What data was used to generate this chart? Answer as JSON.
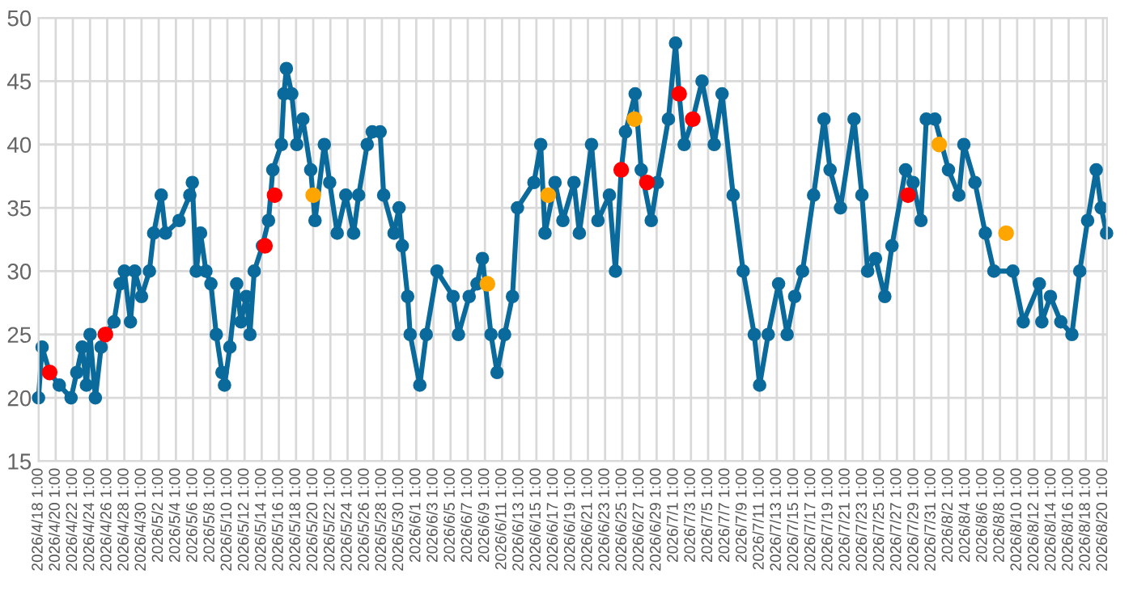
{
  "chart_data": {
    "type": "line",
    "series": [
      {
        "color": "#0b6a9c",
        "marker": "circle",
        "line_style": "solid",
        "x": [
          "2026-04-18T01:00",
          "2026-04-18T11:00",
          "2026-04-19T08:00",
          "2026-04-20T11:00",
          "2026-04-21T20:00",
          "2026-04-22T12:00",
          "2026-04-23T03:00",
          "2026-04-23T15:00",
          "2026-04-24T01:00",
          "2026-04-24T16:00",
          "2026-04-25T08:00",
          "2026-04-25T20:00",
          "2026-04-26T20:00",
          "2026-04-27T13:00",
          "2026-04-28T01:00",
          "2026-04-28T18:00",
          "2026-04-29T06:00",
          "2026-04-30T01:00",
          "2026-04-30T23:00",
          "2026-05-01T11:00",
          "2026-05-02T08:00",
          "2026-05-02T20:00",
          "2026-05-04T10:00",
          "2026-05-05T16:00",
          "2026-05-05T23:00",
          "2026-05-06T10:00",
          "2026-05-06T22:00",
          "2026-05-07T13:00",
          "2026-05-08T03:00",
          "2026-05-08T18:00",
          "2026-05-09T10:00",
          "2026-05-09T17:00",
          "2026-05-10T08:00",
          "2026-05-11T03:00",
          "2026-05-11T15:00",
          "2026-05-12T06:00",
          "2026-05-12T16:00",
          "2026-05-13T04:00",
          "2026-05-14T03:00",
          "2026-05-14T20:00",
          "2026-05-15T08:00",
          "2026-05-16T08:00",
          "2026-05-16T15:00",
          "2026-05-16T22:00",
          "2026-05-17T13:00",
          "2026-05-18T03:00",
          "2026-05-18T20:00",
          "2026-05-19T18:00",
          "2026-05-20T06:00",
          "2026-05-21T08:00",
          "2026-05-21T23:00",
          "2026-05-22T20:00",
          "2026-05-23T20:00",
          "2026-05-24T18:00",
          "2026-05-25T08:00",
          "2026-05-26T08:00",
          "2026-05-26T22:00",
          "2026-05-27T20:00",
          "2026-05-28T06:00",
          "2026-05-29T11:00",
          "2026-05-30T01:00",
          "2026-05-30T10:00",
          "2026-05-31T01:00",
          "2026-05-31T08:00",
          "2026-06-01T11:00",
          "2026-06-02T05:00",
          "2026-06-03T11:00",
          "2026-06-05T08:00",
          "2026-06-05T23:00",
          "2026-06-07T05:00",
          "2026-06-08T03:00",
          "2026-06-08T18:00",
          "2026-06-09T18:00",
          "2026-06-10T11:00",
          "2026-06-11T08:00",
          "2026-06-12T06:00",
          "2026-06-12T20:00",
          "2026-06-14T18:00",
          "2026-06-15T13:00",
          "2026-06-16T01:00",
          "2026-06-17T05:00",
          "2026-06-18T03:00",
          "2026-06-19T10:00",
          "2026-06-20T01:00",
          "2026-06-21T11:00",
          "2026-06-22T05:00",
          "2026-06-23T13:00",
          "2026-06-24T06:00",
          "2026-06-24T22:00",
          "2026-06-25T10:00",
          "2026-06-26T13:00",
          "2026-06-27T06:00",
          "2026-06-28T10:00",
          "2026-06-29T03:00",
          "2026-06-30T10:00",
          "2026-07-01T06:00",
          "2026-07-01T16:00",
          "2026-07-02T06:00",
          "2026-07-03T06:00",
          "2026-07-04T08:00",
          "2026-07-05T18:00",
          "2026-07-06T16:00",
          "2026-07-07T23:00",
          "2026-07-09T03:00",
          "2026-07-10T10:00",
          "2026-07-11T01:00",
          "2026-07-12T01:00",
          "2026-07-13T06:00",
          "2026-07-14T06:00",
          "2026-07-15T03:00",
          "2026-07-16T01:00",
          "2026-07-17T08:00",
          "2026-07-18T13:00",
          "2026-07-19T06:00",
          "2026-07-20T11:00",
          "2026-07-22T01:00",
          "2026-07-22T23:00",
          "2026-07-23T15:00",
          "2026-07-24T13:00",
          "2026-07-25T15:00",
          "2026-07-26T11:00",
          "2026-07-28T01:00",
          "2026-07-28T22:00",
          "2026-07-29T20:00",
          "2026-07-30T11:00",
          "2026-07-31T11:00",
          "2026-08-02T01:00",
          "2026-08-03T06:00",
          "2026-08-03T20:00",
          "2026-08-05T03:00",
          "2026-08-06T08:00",
          "2026-08-07T08:00",
          "2026-08-09T13:00",
          "2026-08-10T18:00",
          "2026-08-12T15:00",
          "2026-08-12T22:00",
          "2026-08-13T22:00",
          "2026-08-15T03:00",
          "2026-08-16T10:00",
          "2026-08-17T08:00",
          "2026-08-18T06:00",
          "2026-08-19T06:00",
          "2026-08-19T20:00",
          "2026-08-20T11:00"
        ],
        "values": [
          20,
          24,
          22,
          21,
          20,
          22,
          24,
          21,
          25,
          20,
          24,
          25,
          26,
          29,
          30,
          26,
          30,
          28,
          30,
          33,
          36,
          33,
          34,
          36,
          37,
          30,
          33,
          30,
          29,
          25,
          22,
          21,
          24,
          29,
          26,
          28,
          25,
          30,
          32,
          34,
          38,
          40,
          44,
          46,
          44,
          40,
          42,
          38,
          34,
          40,
          37,
          33,
          36,
          33,
          36,
          40,
          41,
          41,
          36,
          33,
          35,
          32,
          28,
          25,
          21,
          25,
          30,
          28,
          25,
          28,
          29,
          31,
          25,
          22,
          25,
          28,
          35,
          37,
          40,
          33,
          37,
          34,
          37,
          33,
          40,
          34,
          36,
          30,
          38,
          41,
          44,
          38,
          34,
          37,
          42,
          48,
          44,
          40,
          42,
          45,
          40,
          44,
          36,
          30,
          25,
          21,
          25,
          29,
          25,
          28,
          30,
          36,
          42,
          38,
          35,
          42,
          36,
          30,
          31,
          28,
          32,
          38,
          37,
          34,
          42,
          42,
          38,
          36,
          40,
          37,
          33,
          30,
          30,
          26,
          29,
          26,
          28,
          26,
          25,
          30,
          34,
          38,
          35,
          33
        ]
      },
      {
        "type": "scatter",
        "color": "#ff0000",
        "marker": "circle",
        "x": [
          "2026-04-19T08:00",
          "2026-04-25T20:00",
          "2026-05-14T10:00",
          "2026-05-15T13:00",
          "2026-06-24T22:00",
          "2026-06-27T22:00",
          "2026-07-01T16:00",
          "2026-07-03T06:00",
          "2026-07-28T08:00"
        ],
        "values": [
          22,
          25,
          32,
          36,
          38,
          37,
          44,
          42,
          36
        ]
      },
      {
        "type": "scatter",
        "color": "#ffa500",
        "marker": "circle",
        "x": [
          "2026-05-20T01:00",
          "2026-06-09T08:00",
          "2026-06-16T10:00",
          "2026-06-26T11:00",
          "2026-07-31T23:00",
          "2026-08-08T18:00"
        ],
        "values": [
          36,
          29,
          36,
          42,
          40,
          33
        ]
      }
    ],
    "xlim": [
      "2026-04-18T01:00",
      "2026-08-20T12:00"
    ],
    "xticks": [
      {
        "value": "2026-04-18T01:00",
        "label": "2026/4/18 1:00"
      },
      {
        "value": "2026-04-20T01:00",
        "label": "2026/4/20 1:00"
      },
      {
        "value": "2026-04-22T01:00",
        "label": "2026/4/22 1:00"
      },
      {
        "value": "2026-04-24T01:00",
        "label": "2026/4/24 1:00"
      },
      {
        "value": "2026-04-26T01:00",
        "label": "2026/4/26 1:00"
      },
      {
        "value": "2026-04-28T01:00",
        "label": "2026/4/28 1:00"
      },
      {
        "value": "2026-04-30T01:00",
        "label": "2026/4/30 1:00"
      },
      {
        "value": "2026-05-02T01:00",
        "label": "2026/5/2 1:00"
      },
      {
        "value": "2026-05-04T01:00",
        "label": "2026/5/4 1:00"
      },
      {
        "value": "2026-05-06T01:00",
        "label": "2026/5/6 1:00"
      },
      {
        "value": "2026-05-08T01:00",
        "label": "2026/5/8 1:00"
      },
      {
        "value": "2026-05-10T01:00",
        "label": "2026/5/10 1:00"
      },
      {
        "value": "2026-05-12T01:00",
        "label": "2026/5/12 1:00"
      },
      {
        "value": "2026-05-14T01:00",
        "label": "2026/5/14 1:00"
      },
      {
        "value": "2026-05-16T01:00",
        "label": "2026/5/16 1:00"
      },
      {
        "value": "2026-05-18T01:00",
        "label": "2026/5/18 1:00"
      },
      {
        "value": "2026-05-20T01:00",
        "label": "2026/5/20 1:00"
      },
      {
        "value": "2026-05-22T01:00",
        "label": "2026/5/22 1:00"
      },
      {
        "value": "2026-05-24T01:00",
        "label": "2026/5/24 1:00"
      },
      {
        "value": "2026-05-26T01:00",
        "label": "2026/5/26 1:00"
      },
      {
        "value": "2026-05-28T01:00",
        "label": "2026/5/28 1:00"
      },
      {
        "value": "2026-05-30T01:00",
        "label": "2026/5/30 1:00"
      },
      {
        "value": "2026-06-01T01:00",
        "label": "2026/6/1 1:00"
      },
      {
        "value": "2026-06-03T01:00",
        "label": "2026/6/3 1:00"
      },
      {
        "value": "2026-06-05T01:00",
        "label": "2026/6/5 1:00"
      },
      {
        "value": "2026-06-07T01:00",
        "label": "2026/6/7 1:00"
      },
      {
        "value": "2026-06-09T01:00",
        "label": "2026/6/9 1:00"
      },
      {
        "value": "2026-06-11T01:00",
        "label": "2026/6/11 1:00"
      },
      {
        "value": "2026-06-13T01:00",
        "label": "2026/6/13 1:00"
      },
      {
        "value": "2026-06-15T01:00",
        "label": "2026/6/15 1:00"
      },
      {
        "value": "2026-06-17T01:00",
        "label": "2026/6/17 1:00"
      },
      {
        "value": "2026-06-19T01:00",
        "label": "2026/6/19 1:00"
      },
      {
        "value": "2026-06-21T01:00",
        "label": "2026/6/21 1:00"
      },
      {
        "value": "2026-06-23T01:00",
        "label": "2026/6/23 1:00"
      },
      {
        "value": "2026-06-25T01:00",
        "label": "2026/6/25 1:00"
      },
      {
        "value": "2026-06-27T01:00",
        "label": "2026/6/27 1:00"
      },
      {
        "value": "2026-06-29T01:00",
        "label": "2026/6/29 1:00"
      },
      {
        "value": "2026-07-01T01:00",
        "label": "2026/7/1 1:00"
      },
      {
        "value": "2026-07-03T01:00",
        "label": "2026/7/3 1:00"
      },
      {
        "value": "2026-07-05T01:00",
        "label": "2026/7/5 1:00"
      },
      {
        "value": "2026-07-07T01:00",
        "label": "2026/7/7 1:00"
      },
      {
        "value": "2026-07-09T01:00",
        "label": "2026/7/9 1:00"
      },
      {
        "value": "2026-07-11T01:00",
        "label": "2026/7/11 1:00"
      },
      {
        "value": "2026-07-13T01:00",
        "label": "2026/7/13 1:00"
      },
      {
        "value": "2026-07-15T01:00",
        "label": "2026/7/15 1:00"
      },
      {
        "value": "2026-07-17T01:00",
        "label": "2026/7/17 1:00"
      },
      {
        "value": "2026-07-19T01:00",
        "label": "2026/7/19 1:00"
      },
      {
        "value": "2026-07-21T01:00",
        "label": "2026/7/21 1:00"
      },
      {
        "value": "2026-07-23T01:00",
        "label": "2026/7/23 1:00"
      },
      {
        "value": "2026-07-25T01:00",
        "label": "2026/7/25 1:00"
      },
      {
        "value": "2026-07-27T01:00",
        "label": "2026/7/27 1:00"
      },
      {
        "value": "2026-07-29T01:00",
        "label": "2026/7/29 1:00"
      },
      {
        "value": "2026-07-31T01:00",
        "label": "2026/7/31 1:00"
      },
      {
        "value": "2026-08-02T01:00",
        "label": "2026/8/2 1:00"
      },
      {
        "value": "2026-08-04T01:00",
        "label": "2026/8/4 1:00"
      },
      {
        "value": "2026-08-06T01:00",
        "label": "2026/8/6 1:00"
      },
      {
        "value": "2026-08-08T01:00",
        "label": "2026/8/8 1:00"
      },
      {
        "value": "2026-08-10T01:00",
        "label": "2026/8/10 1:00"
      },
      {
        "value": "2026-08-12T01:00",
        "label": "2026/8/12 1:00"
      },
      {
        "value": "2026-08-14T01:00",
        "label": "2026/8/14 1:00"
      },
      {
        "value": "2026-08-16T01:00",
        "label": "2026/8/16 1:00"
      },
      {
        "value": "2026-08-18T01:00",
        "label": "2026/8/18 1:00"
      },
      {
        "value": "2026-08-20T01:00",
        "label": "2026/8/20 1:00"
      }
    ],
    "ylim": [
      15,
      50
    ],
    "yticks": [
      15,
      20,
      25,
      30,
      35,
      40,
      45,
      50
    ],
    "grid": true,
    "legend": false
  }
}
